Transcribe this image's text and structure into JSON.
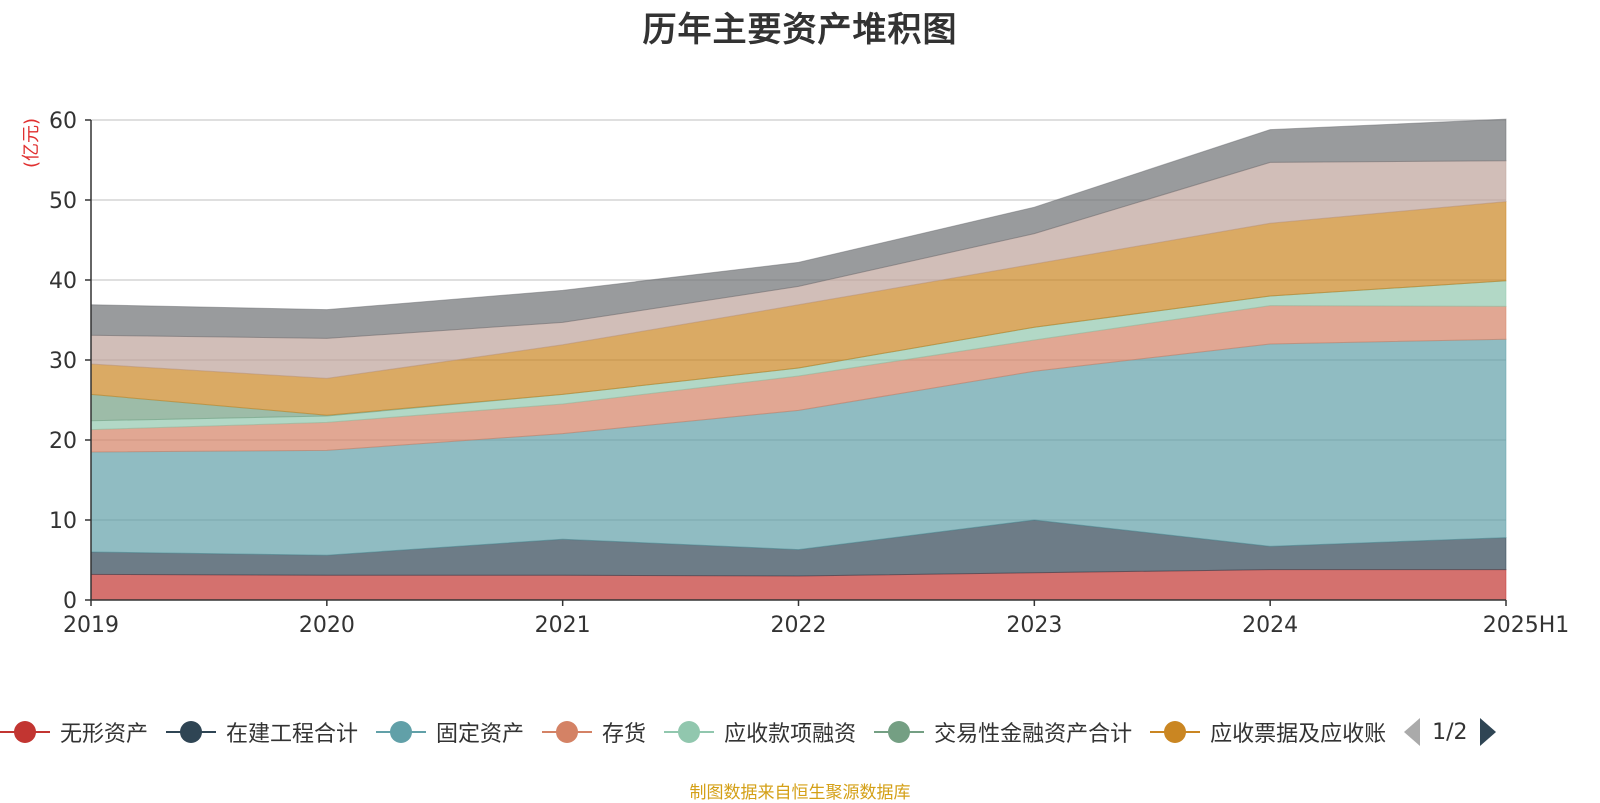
{
  "chart_data": {
    "type": "area",
    "stacked": true,
    "title": "历年主要资产堆积图",
    "unit_label": "(亿元)",
    "x": [
      "2019",
      "2020",
      "2021",
      "2022",
      "2023",
      "2024",
      "2025H1"
    ],
    "ylim": [
      0,
      60
    ],
    "yticks": [
      0,
      10,
      20,
      30,
      40,
      50,
      60
    ],
    "grid": true,
    "legend_position": "bottom",
    "series": [
      {
        "name": "无形资产",
        "color": "#c23531",
        "values": [
          3.2,
          3.1,
          3.1,
          3.0,
          3.4,
          3.8,
          3.8
        ]
      },
      {
        "name": "在建工程合计",
        "color": "#2f4554",
        "values": [
          2.8,
          2.5,
          4.5,
          3.3,
          6.6,
          2.9,
          4.0
        ]
      },
      {
        "name": "固定资产",
        "color": "#61a0a8",
        "values": [
          12.5,
          13.1,
          13.2,
          17.4,
          18.6,
          25.3,
          24.8
        ]
      },
      {
        "name": "存货",
        "color": "#d48265",
        "values": [
          2.8,
          3.5,
          3.7,
          4.3,
          3.9,
          4.8,
          4.1
        ]
      },
      {
        "name": "应收款项融资",
        "color": "#91c7ae",
        "values": [
          1.1,
          0.8,
          1.2,
          1.0,
          1.6,
          1.2,
          3.2
        ]
      },
      {
        "name": "交易性金融资产合计",
        "color": "#749f83",
        "values": [
          3.3,
          0.1,
          0.0,
          0.0,
          0.0,
          0.0,
          0.0
        ]
      },
      {
        "name": "应收票据及应收账",
        "color": "#ca8622",
        "values": [
          3.8,
          4.6,
          6.2,
          7.9,
          7.9,
          9.1,
          9.9
        ]
      },
      {
        "name": "",
        "color": "#bda29a",
        "values": [
          3.6,
          5.0,
          2.8,
          2.3,
          3.8,
          7.6,
          5.1
        ]
      },
      {
        "name": "",
        "color": "#6e7074",
        "values": [
          3.8,
          3.6,
          4.0,
          3.0,
          3.3,
          4.1,
          5.2
        ]
      }
    ]
  },
  "legend": {
    "items": [
      "无形资产",
      "在建工程合计",
      "固定资产",
      "存货",
      "应收款项融资",
      "交易性金融资产合计",
      "应收票据及应收账"
    ],
    "page_indicator": "1/2"
  },
  "source_note": "制图数据来自恒生聚源数据库"
}
